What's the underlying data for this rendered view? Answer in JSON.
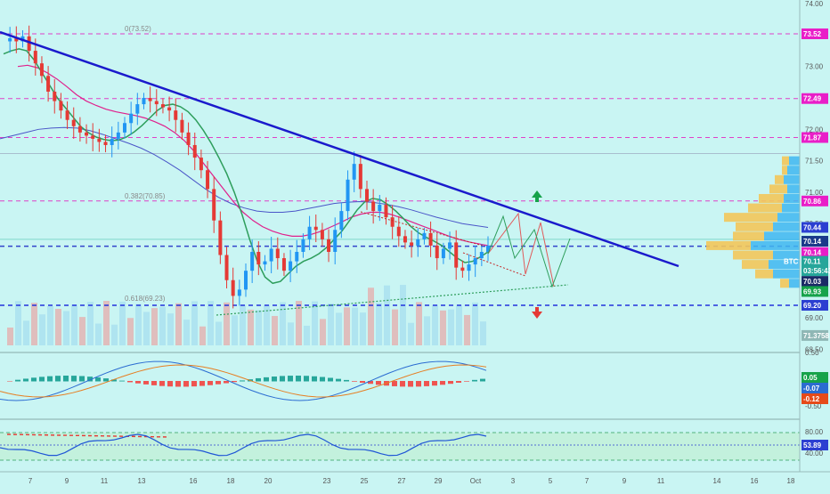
{
  "chart_data": {
    "type": "candlestick",
    "x_ticks": [
      "7",
      "9",
      "11",
      "13",
      "16",
      "18",
      "20",
      "23",
      "25",
      "27",
      "29",
      "Oct",
      "3",
      "5",
      "7",
      "9",
      "11",
      "14",
      "16",
      "18"
    ],
    "y_ticks": [
      "74.00",
      "73.50",
      "73.00",
      "72.50",
      "72.00",
      "71.50",
      "71.00",
      "70.50",
      "70.00",
      "69.50",
      "69.00",
      "68.50"
    ],
    "ylim": [
      68.5,
      74.0
    ],
    "close_path": [
      73.4,
      73.45,
      73.4,
      73.48,
      73.25,
      73.05,
      72.85,
      72.6,
      72.45,
      72.3,
      72.15,
      72.05,
      71.95,
      71.9,
      71.85,
      71.8,
      71.75,
      71.85,
      71.95,
      72.1,
      72.25,
      72.4,
      72.5,
      72.45,
      72.4,
      72.35,
      72.3,
      72.15,
      71.95,
      71.75,
      71.55,
      71.35,
      71.05,
      70.55,
      70.0,
      69.6,
      69.35,
      69.45,
      69.75,
      70.05,
      69.85,
      69.9,
      70.1,
      69.95,
      69.75,
      69.9,
      70.05,
      70.25,
      70.45,
      70.4,
      70.25,
      70.05,
      70.4,
      70.7,
      71.2,
      71.45,
      71.05,
      70.85,
      70.7,
      70.8,
      70.6,
      70.45,
      70.3,
      70.2,
      70.15,
      70.25,
      70.35,
      70.15,
      69.95,
      70.1,
      70.2,
      69.8,
      69.75,
      69.85,
      69.95,
      70.05,
      70.15
    ],
    "ma_green": [
      73.2,
      73.25,
      73.28,
      73.25,
      73.1,
      72.9,
      72.7,
      72.5,
      72.35,
      72.2,
      72.05,
      71.95,
      71.88,
      71.84,
      71.82,
      71.83,
      71.88,
      71.96,
      72.06,
      72.18,
      72.3,
      72.38,
      72.4,
      72.36,
      72.28,
      72.15,
      71.98,
      71.78,
      71.55,
      71.3,
      71.0,
      70.65,
      70.25,
      69.9,
      69.65,
      69.55,
      69.58,
      69.7,
      69.82,
      69.9,
      69.95,
      70.02,
      70.12,
      70.25,
      70.38,
      70.55,
      70.72,
      70.85,
      70.9,
      70.88,
      70.8,
      70.7,
      70.58,
      70.45,
      70.35,
      70.28,
      70.22,
      70.15,
      70.05,
      69.95,
      69.88,
      69.9,
      69.97,
      70.05
    ],
    "ma_pink": [
      73.0,
      73.02,
      72.98,
      72.9,
      72.8,
      72.68,
      72.55,
      72.45,
      72.38,
      72.32,
      72.28,
      72.25,
      72.22,
      72.18,
      72.12,
      72.05,
      71.95,
      71.82,
      71.65,
      71.45,
      71.25,
      71.05,
      70.85,
      70.68,
      70.55,
      70.45,
      70.38,
      70.33,
      70.3,
      70.3,
      70.33,
      70.38,
      70.45,
      70.52,
      70.6,
      70.65,
      70.68,
      70.68,
      70.65,
      70.6,
      70.54,
      70.48,
      70.42,
      70.36,
      70.3,
      70.25,
      70.21,
      70.18,
      70.15
    ],
    "ma_blue": [
      71.85,
      71.9,
      71.95,
      72.0,
      72.02,
      72.03,
      72.02,
      71.98,
      71.92,
      71.85,
      71.78,
      71.7,
      71.6,
      71.48,
      71.35,
      71.2,
      71.05,
      70.92,
      70.82,
      70.75,
      70.7,
      70.68,
      70.68,
      70.7,
      70.74,
      70.78,
      70.82,
      70.84,
      70.85,
      70.84,
      70.81,
      70.77,
      70.72,
      70.66,
      70.6,
      70.55,
      70.5,
      70.47,
      70.44
    ],
    "horizontal_levels": [
      {
        "value": 73.52,
        "label": "73.52",
        "style": "dashed",
        "color": "#e040c8"
      },
      {
        "value": 72.49,
        "label": "72.49",
        "style": "dashed",
        "color": "#e040c8"
      },
      {
        "value": 71.87,
        "label": "71.87",
        "style": "dashed",
        "color": "#e040c8"
      },
      {
        "value": 70.86,
        "label": "70.86",
        "style": "dashed",
        "color": "#e040c8"
      },
      {
        "value": 70.14,
        "label": "70.14",
        "style": "dashed",
        "color": "#3344cc"
      },
      {
        "value": 69.2,
        "label": "69.20",
        "style": "dashed",
        "color": "#2233dd"
      }
    ],
    "fib_labels": [
      {
        "text": "0(73.52)",
        "value": 73.52
      },
      {
        "text": "0.382(70.85)",
        "value": 70.86
      },
      {
        "text": "0.618(69.23)",
        "value": 69.23
      }
    ],
    "price_tags": [
      {
        "label": "73.52",
        "value": 73.52,
        "color": "#e91ec8"
      },
      {
        "label": "72.49",
        "value": 72.49,
        "color": "#e91ec8"
      },
      {
        "label": "71.87",
        "value": 71.87,
        "color": "#e91ec8"
      },
      {
        "label": "70.86",
        "value": 70.86,
        "color": "#e91ec8"
      },
      {
        "label": "70.44",
        "value": 70.44,
        "color": "#2b3fd1"
      },
      {
        "label": "70.14",
        "value": 70.22,
        "color": "#1a3a8a"
      },
      {
        "label": "70.14",
        "value": 70.04,
        "color": "#e91ec8"
      },
      {
        "label": "70.11",
        "value": 69.9,
        "color": "#26a69a"
      },
      {
        "label": "03:56:43",
        "value": 69.75,
        "color": "#26a69a"
      },
      {
        "label": "70.03",
        "value": 69.58,
        "color": "#1b2a66"
      },
      {
        "label": "69.93",
        "value": 69.42,
        "color": "#16a34a"
      },
      {
        "label": "69.20",
        "value": 69.2,
        "color": "#2b3fd1"
      },
      {
        "label": "71.3758",
        "value": 68.72,
        "color": "#8fb7b5"
      }
    ],
    "btc_label": "BTC",
    "volume_profile": [
      {
        "value": 71.5,
        "yellow": 8,
        "blue": 12
      },
      {
        "value": 71.35,
        "yellow": 6,
        "blue": 14
      },
      {
        "value": 71.2,
        "yellow": 10,
        "blue": 18
      },
      {
        "value": 71.05,
        "yellow": 20,
        "blue": 14
      },
      {
        "value": 70.9,
        "yellow": 28,
        "blue": 18
      },
      {
        "value": 70.75,
        "yellow": 38,
        "blue": 20
      },
      {
        "value": 70.6,
        "yellow": 60,
        "blue": 25
      },
      {
        "value": 70.45,
        "yellow": 42,
        "blue": 30
      },
      {
        "value": 70.3,
        "yellow": 35,
        "blue": 40
      },
      {
        "value": 70.15,
        "yellow": 50,
        "blue": 55
      },
      {
        "value": 70.0,
        "yellow": 45,
        "blue": 30
      },
      {
        "value": 69.85,
        "yellow": 30,
        "blue": 35
      },
      {
        "value": 69.7,
        "yellow": 20,
        "blue": 30
      },
      {
        "value": 69.55,
        "yellow": 10,
        "blue": 12
      }
    ],
    "macd": {
      "y_ticks": [
        "0.50",
        "-0.50"
      ],
      "tags": [
        {
          "label": "0.05",
          "color": "#16a34a"
        },
        {
          "label": "-0.07",
          "color": "#2b6cd1"
        },
        {
          "label": "-0.12",
          "color": "#e64a19"
        }
      ]
    },
    "rsi": {
      "y_ticks": [
        "80.00",
        "40.00"
      ],
      "tags": [
        {
          "label": "53.89",
          "color": "#2b3fd1"
        }
      ],
      "value": 53.89
    },
    "colors": {
      "background": "#c9f5f3",
      "up": "#2196f3",
      "down": "#e53935",
      "trendline": "#1a1acc",
      "ma_green": "#2e9e5c",
      "ma_pink": "#e0208c",
      "ma_blue": "#4a55c8"
    }
  }
}
